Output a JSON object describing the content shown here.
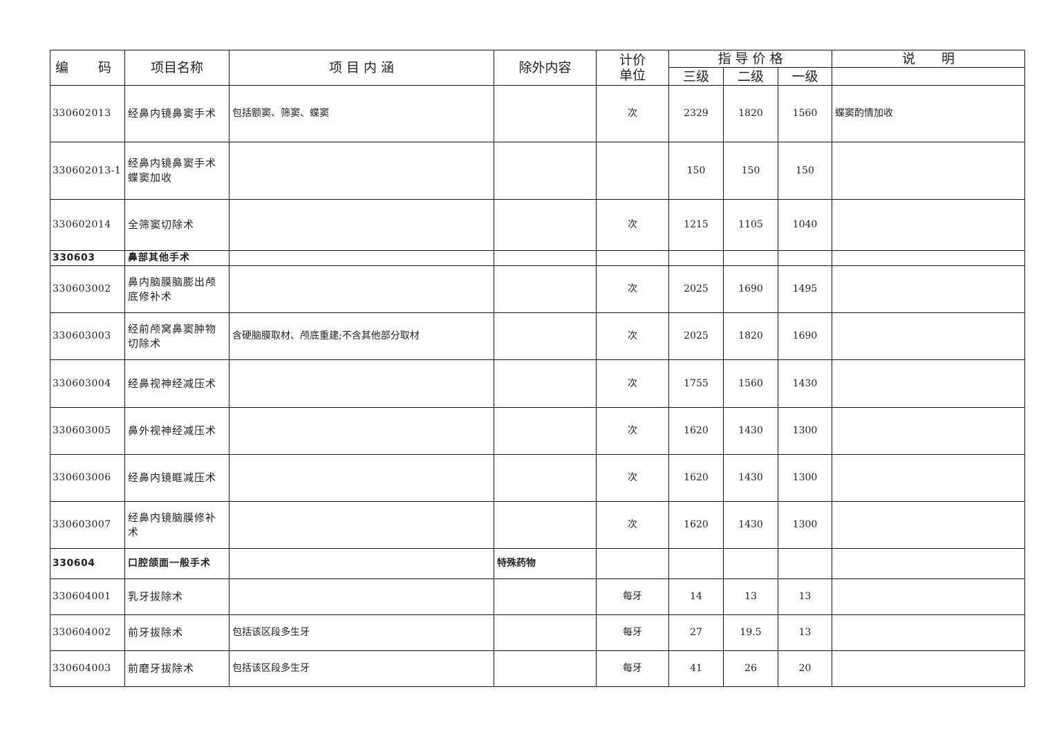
{
  "header": {
    "code": "编　码",
    "name": "项目名称",
    "content": "项 目 内 涵",
    "excluded": "除外内容",
    "unit": "计价单位",
    "price": "指 导 价 格",
    "level3": "三级",
    "level2": "二级",
    "level1": "一级",
    "note": "说　　明"
  },
  "rows": [
    {
      "code": "330602013",
      "name": "经鼻内镜鼻窦手术",
      "content": "包括额窦、筛窦、蝶窦",
      "excluded": "",
      "unit": "次",
      "p3": "2329",
      "p2": "1820",
      "p1": "1560",
      "note": "蝶窦酌情加收",
      "section": false
    },
    {
      "code": "330602013-1",
      "name": "经鼻内镜鼻窦手术蝶窦加收",
      "content": "",
      "excluded": "",
      "unit": "",
      "p3": "150",
      "p2": "150",
      "p1": "150",
      "note": "",
      "section": false
    },
    {
      "code": "330602014",
      "name": "全筛窦切除术",
      "content": "",
      "excluded": "",
      "unit": "次",
      "p3": "1215",
      "p2": "1105",
      "p1": "1040",
      "note": "",
      "section": false
    },
    {
      "code": "330603",
      "name": "鼻部其他手术",
      "content": "",
      "excluded": "",
      "unit": "",
      "p3": "",
      "p2": "",
      "p1": "",
      "note": "",
      "section": true
    },
    {
      "code": "330603002",
      "name": "鼻内脑膜脑膨出颅底修补术",
      "content": "",
      "excluded": "",
      "unit": "次",
      "p3": "2025",
      "p2": "1690",
      "p1": "1495",
      "note": "",
      "section": false
    },
    {
      "code": "330603003",
      "name": "经前颅窝鼻窦肿物切除术",
      "content": "含硬脑膜取材、颅底重建;不含其他部分取材",
      "excluded": "",
      "unit": "次",
      "p3": "2025",
      "p2": "1820",
      "p1": "1690",
      "note": "",
      "section": false
    },
    {
      "code": "330603004",
      "name": "经鼻视神经减压术",
      "content": "",
      "excluded": "",
      "unit": "次",
      "p3": "1755",
      "p2": "1560",
      "p1": "1430",
      "note": "",
      "section": false
    },
    {
      "code": "330603005",
      "name": "鼻外视神经减压术",
      "content": "",
      "excluded": "",
      "unit": "次",
      "p3": "1620",
      "p2": "1430",
      "p1": "1300",
      "note": "",
      "section": false
    },
    {
      "code": "330603006",
      "name": "经鼻内镜眶减压术",
      "content": "",
      "excluded": "",
      "unit": "次",
      "p3": "1620",
      "p2": "1430",
      "p1": "1300",
      "note": "",
      "section": false
    },
    {
      "code": "330603007",
      "name": "经鼻内镜脑膜修补术",
      "content": "",
      "excluded": "",
      "unit": "次",
      "p3": "1620",
      "p2": "1430",
      "p1": "1300",
      "note": "",
      "section": false
    },
    {
      "code": "330604",
      "name": "口腔颌面一般手术",
      "content": "",
      "excluded": "特殊药物",
      "unit": "",
      "p3": "",
      "p2": "",
      "p1": "",
      "note": "",
      "section": true
    },
    {
      "code": "330604001",
      "name": "乳牙拔除术",
      "content": "",
      "excluded": "",
      "unit": "每牙",
      "p3": "14",
      "p2": "13",
      "p1": "13",
      "note": "",
      "section": false
    },
    {
      "code": "330604002",
      "name": "前牙拔除术",
      "content": "包括该区段多生牙",
      "excluded": "",
      "unit": "每牙",
      "p3": "27",
      "p2": "19.5",
      "p1": "13",
      "note": "",
      "section": false
    },
    {
      "code": "330604003",
      "name": "前磨牙拔除术",
      "content": "包括该区段多生牙",
      "excluded": "",
      "unit": "每牙",
      "p3": "41",
      "p2": "26",
      "p1": "20",
      "note": "",
      "section": false
    }
  ]
}
